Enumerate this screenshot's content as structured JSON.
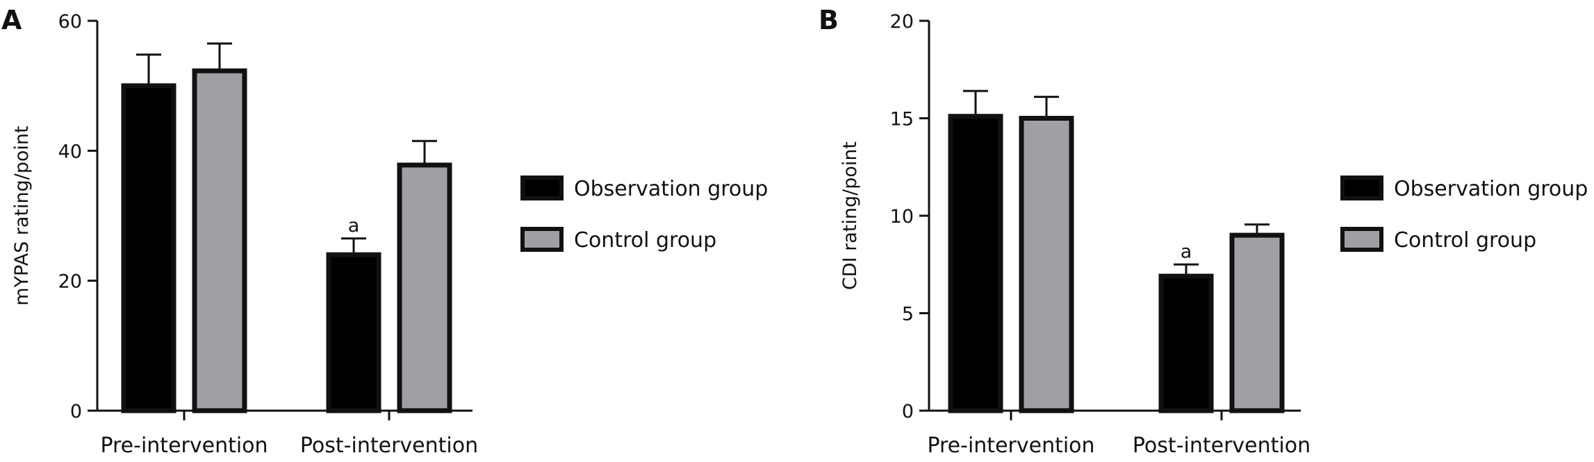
{
  "chart_data": [
    {
      "type": "bar",
      "panel_label": "A",
      "categories": [
        "Pre-intervention",
        "Post-intervention"
      ],
      "ylabel": "mYPAS rating/point",
      "ylim": [
        0,
        60
      ],
      "yticks": [
        0,
        20,
        40,
        60
      ],
      "legend_position": "right",
      "series": [
        {
          "name": "Observation group",
          "color": "#000000",
          "values": [
            50,
            24
          ],
          "errors": [
            4.8,
            2.5
          ],
          "annotations": [
            "",
            "a"
          ]
        },
        {
          "name": "Control group",
          "color": "#a0a0a4",
          "values": [
            52.3,
            37.8
          ],
          "errors": [
            4.2,
            3.7
          ],
          "annotations": [
            "",
            ""
          ]
        }
      ]
    },
    {
      "type": "bar",
      "panel_label": "B",
      "categories": [
        "Pre-intervention",
        "Post-intervention"
      ],
      "ylabel": "CDI rating/point",
      "ylim": [
        0,
        20
      ],
      "yticks": [
        0,
        5,
        10,
        15,
        20
      ],
      "legend_position": "right",
      "series": [
        {
          "name": "Observation group",
          "color": "#000000",
          "values": [
            15.1,
            6.9
          ],
          "errors": [
            1.3,
            0.6
          ],
          "annotations": [
            "",
            "a"
          ]
        },
        {
          "name": "Control group",
          "color": "#a0a0a4",
          "values": [
            15.0,
            9.0
          ],
          "errors": [
            1.1,
            0.55
          ],
          "annotations": [
            "",
            ""
          ]
        }
      ]
    }
  ]
}
